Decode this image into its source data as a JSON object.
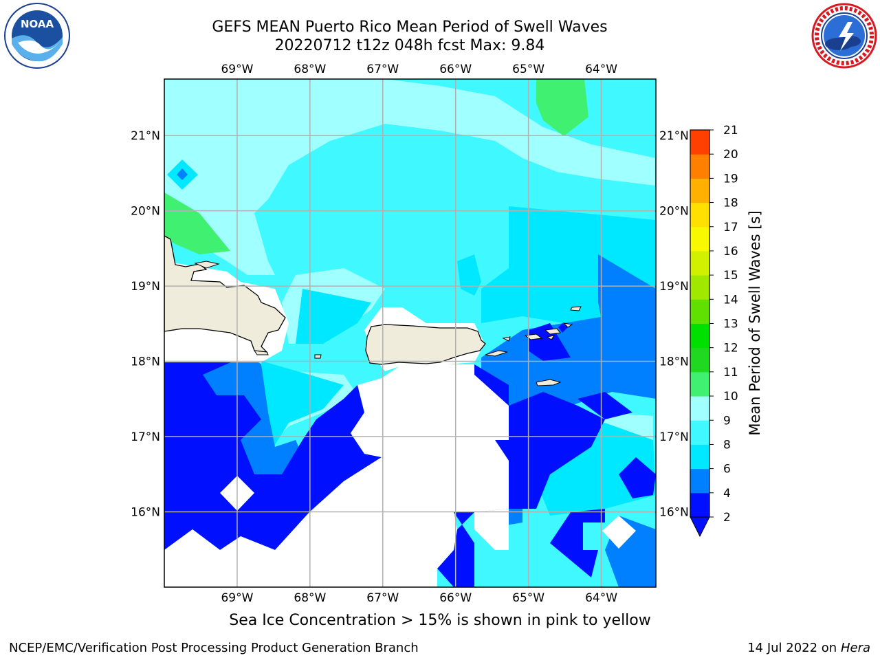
{
  "title_line1": "GEFS MEAN Puerto Rico Mean Period of Swell Waves",
  "title_line2": "20220712 t12z 048h fcst   Max: 9.84",
  "subtitle": "Sea Ice Concentration > 15% is shown in pink to yellow",
  "footer_left": "NCEP/EMC/Verification Post Processing Product Generation Branch",
  "footer_right_date": "14 Jul 2022 on ",
  "footer_right_machine": "Hera",
  "logos": {
    "left": "noaa-logo",
    "right": "nws-logo",
    "left_text": "NOAA"
  },
  "map": {
    "lon_labels": [
      "69°W",
      "68°W",
      "67°W",
      "66°W",
      "65°W",
      "64°W"
    ],
    "lat_labels": [
      "21°N",
      "20°N",
      "19°N",
      "18°N",
      "17°N",
      "16°N"
    ],
    "lon_range": [
      -70.0,
      -63.25
    ],
    "lat_range": [
      15.0,
      21.75
    ],
    "gridlines": true,
    "land_color": "#efecdc",
    "no_data_color": "#ffffff"
  },
  "colorbar": {
    "label": "Mean Period of Swell Waves [s]",
    "ticks": [
      "2",
      "4",
      "6",
      "8",
      "9",
      "10",
      "11",
      "12",
      "13",
      "14",
      "15",
      "16",
      "17",
      "18",
      "19",
      "20",
      "21"
    ],
    "levels": [
      2,
      4,
      6,
      8,
      9,
      10,
      11,
      12,
      13,
      14,
      15,
      16,
      17,
      18,
      19,
      20,
      21
    ],
    "colors": [
      "#0010ff",
      "#0080ff",
      "#00e8ff",
      "#40f8ff",
      "#a0ffff",
      "#40f070",
      "#20d820",
      "#00e000",
      "#60e000",
      "#a0e800",
      "#d0f000",
      "#f8f800",
      "#ffe000",
      "#ffb000",
      "#ff8000",
      "#ff4000",
      "#ff0000"
    ],
    "under_color": "#0010ff",
    "extend": "min"
  }
}
